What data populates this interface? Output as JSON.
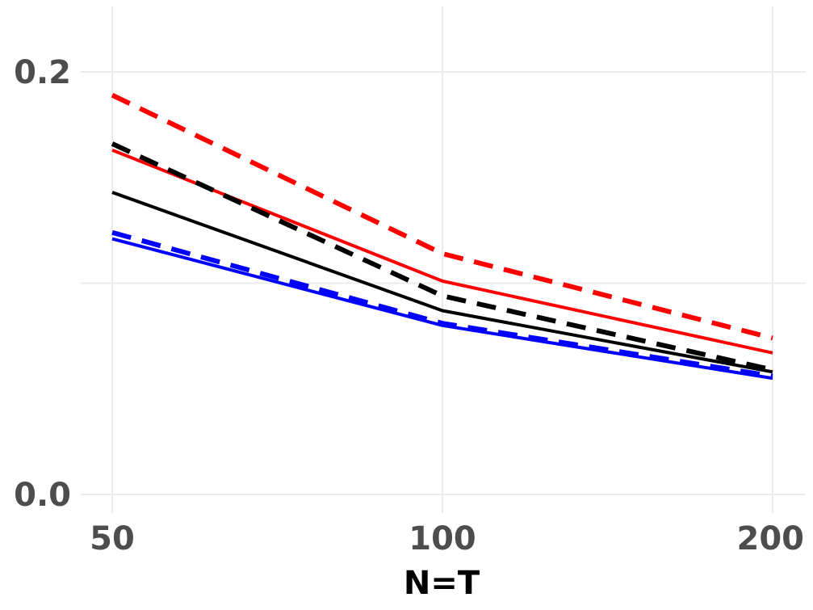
{
  "chart_data": {
    "type": "line",
    "xlabel": "N=T",
    "ylabel": "",
    "x": [
      50,
      100,
      200
    ],
    "x_tick_labels": [
      "50",
      "100",
      "200"
    ],
    "y_ticks": [
      0.0,
      0.2
    ],
    "y_tick_labels": [
      "0.0",
      "0.2"
    ],
    "ylim": [
      0.0,
      0.23
    ],
    "grid": true,
    "legend": "none",
    "series": [
      {
        "color": "#ff0000",
        "dash": "dashed",
        "values": [
          0.189,
          0.114,
          0.074
        ]
      },
      {
        "color": "#ff0000",
        "dash": "solid",
        "values": [
          0.163,
          0.101,
          0.067
        ]
      },
      {
        "color": "#000000",
        "dash": "dashed",
        "values": [
          0.166,
          0.094,
          0.059
        ]
      },
      {
        "color": "#000000",
        "dash": "solid",
        "values": [
          0.143,
          0.087,
          0.058
        ]
      },
      {
        "color": "#0000ff",
        "dash": "dashed",
        "values": [
          0.124,
          0.081,
          0.056
        ]
      },
      {
        "color": "#0000ff",
        "dash": "solid",
        "values": [
          0.121,
          0.08,
          0.055
        ]
      }
    ]
  }
}
